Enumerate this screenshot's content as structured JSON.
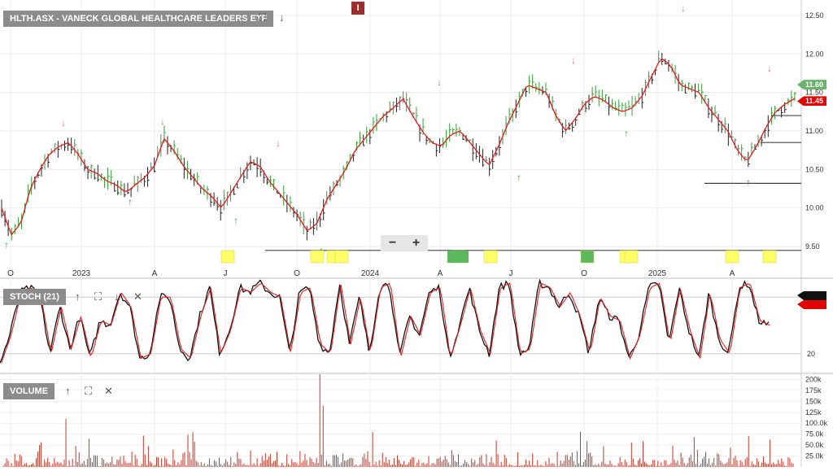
{
  "main_panel": {
    "label": "HLTH.ASX - VANECK GLOBAL HEALTHCARE LEADERS ETF",
    "marker_text": "I"
  },
  "stoch_panel": {
    "label": "STOCH (21)",
    "level_label": "20"
  },
  "volume_panel": {
    "label": "VOLUME"
  },
  "zoom": {
    "minus": "−",
    "plus": "+"
  },
  "icons": {
    "expand": "expand-icon",
    "download": "arrow-down-icon",
    "up": "arrow-up-icon",
    "down": "arrow-down-icon",
    "close": "close-icon"
  },
  "colors": {
    "up_bar": "#3a9a3a",
    "down_bar": "#222222",
    "moving_average": "#e02020",
    "stoch_d": "#e02020",
    "stoch_k": "#111111",
    "volume": "#c0392b",
    "tag_green": "#6db36d",
    "tag_red": "#e00000",
    "event_yellow": "#ffff66",
    "event_green": "#5cb85c"
  },
  "chart_data": [
    {
      "type": "line",
      "chart": "price",
      "x_tick_labels": [
        "O",
        "2023",
        "A",
        "J",
        "O",
        "2024",
        "A",
        "J",
        "O",
        "2025",
        "A"
      ],
      "y_ticks": [
        9.5,
        10.0,
        10.5,
        11.0,
        11.5,
        12.0,
        12.5
      ],
      "y_tick_labels": [
        "9.50",
        "10.00",
        "10.50",
        "11.00",
        "11.50",
        "12.00",
        "12.50"
      ],
      "ylim": [
        9.3,
        12.7
      ],
      "price_tags": [
        {
          "label": "11.60",
          "value": 11.6,
          "color": "green"
        },
        {
          "label": "11.45",
          "value": 11.45,
          "color": "red"
        }
      ],
      "series": [
        {
          "values": [
            10.0,
            9.65,
            9.8,
            10.25,
            10.5,
            10.7,
            10.8,
            10.85,
            10.7,
            10.5,
            10.45,
            10.35,
            10.3,
            10.2,
            10.3,
            10.4,
            10.55,
            10.9,
            10.75,
            10.55,
            10.4,
            10.25,
            10.15,
            10.0,
            10.2,
            10.4,
            10.6,
            10.55,
            10.35,
            10.2,
            10.05,
            9.9,
            9.7,
            9.8,
            10.1,
            10.3,
            10.5,
            10.75,
            10.9,
            11.05,
            11.2,
            11.3,
            11.42,
            11.2,
            11.0,
            10.85,
            10.8,
            10.95,
            11.0,
            10.85,
            10.7,
            10.55,
            10.8,
            11.1,
            11.35,
            11.6,
            11.55,
            11.5,
            11.2,
            11.0,
            11.15,
            11.35,
            11.45,
            11.4,
            11.3,
            11.25,
            11.3,
            11.45,
            11.7,
            11.95,
            11.85,
            11.6,
            11.55,
            11.5,
            11.3,
            11.15,
            11.0,
            10.75,
            10.6,
            10.8,
            11.05,
            11.25,
            11.35,
            11.42
          ]
        }
      ],
      "horizontal_levels": [
        9.45,
        10.32,
        10.85,
        11.2
      ],
      "event_markers": [
        "note",
        "note",
        "note",
        "note",
        "note",
        "note",
        "note",
        "note",
        "note",
        "note"
      ]
    },
    {
      "type": "line",
      "chart": "stochastic",
      "y_ticks": [
        20,
        80
      ],
      "y_tick_labels": [
        "20"
      ],
      "ylim": [
        0,
        100
      ],
      "series": [
        {
          "values": [
            10,
            40,
            85,
            90,
            80,
            20,
            70,
            25,
            60,
            15,
            55,
            50,
            85,
            70,
            15,
            20,
            80,
            80,
            25,
            15,
            60,
            90,
            20,
            45,
            90,
            85,
            95,
            85,
            80,
            20,
            85,
            90,
            30,
            20,
            95,
            30,
            80,
            20,
            90,
            95,
            15,
            60,
            40,
            85,
            90,
            15,
            50,
            90,
            45,
            20,
            90,
            95,
            20,
            25,
            95,
            90,
            70,
            85,
            60,
            20,
            80,
            60,
            55,
            15,
            40,
            90,
            95,
            30,
            90,
            45,
            15,
            85,
            35,
            20,
            90,
            95,
            55,
            50
          ]
        }
      ]
    },
    {
      "type": "bar",
      "chart": "volume",
      "y_ticks": [
        25000,
        50000,
        75000,
        100000,
        125000,
        150000,
        175000,
        200000
      ],
      "y_tick_labels": [
        "25.0k",
        "50.0k",
        "75.0k",
        "100.0k",
        "125k",
        "150k",
        "175k",
        "200k"
      ],
      "ylim": [
        0,
        212000
      ],
      "spikes": [
        {
          "index_fraction": 0.4,
          "value": 212000
        },
        {
          "index_fraction": 0.405,
          "value": 140000
        },
        {
          "index_fraction": 0.08,
          "value": 110000
        },
        {
          "index_fraction": 0.73,
          "value": 80000
        }
      ]
    }
  ]
}
